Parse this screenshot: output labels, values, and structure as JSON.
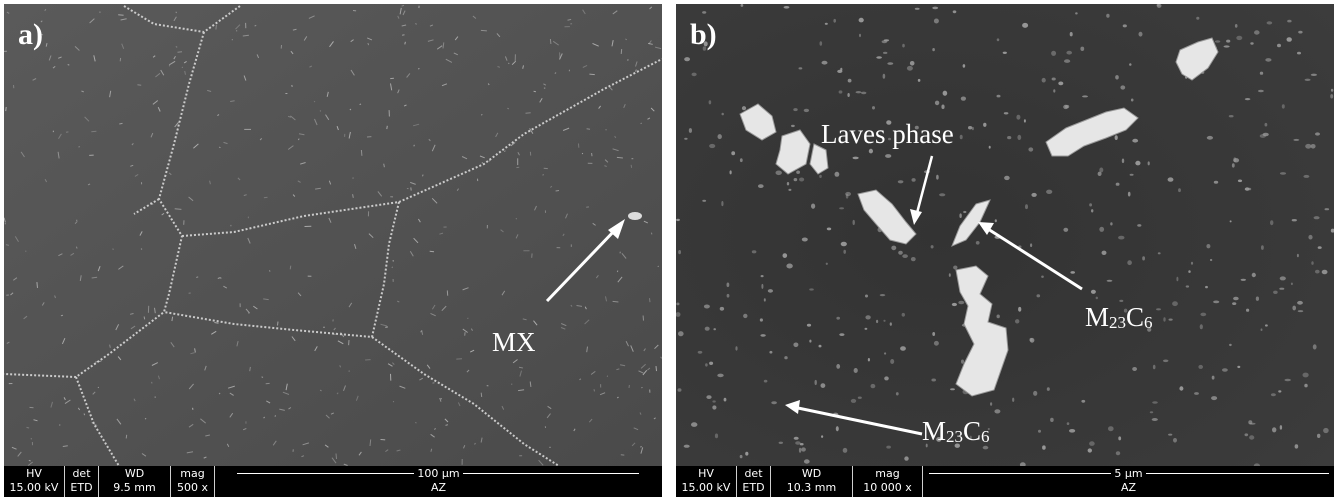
{
  "panel_a": {
    "letter": "a)",
    "label_mx": "MX",
    "databar": {
      "hv_header": "HV",
      "hv_value": "15.00 kV",
      "det_header": "det",
      "det_value": "ETD",
      "wd_header": "WD",
      "wd_value": "9.5 mm",
      "mag_header": "mag",
      "mag_value": "500 x",
      "scale_text": "100 µm",
      "operator": "AZ"
    }
  },
  "panel_b": {
    "letter": "b)",
    "label_laves": "Laves phase",
    "label_m23c6_1_main": "M",
    "label_m23c6_1_sub1": "23",
    "label_m23c6_1_c": "C",
    "label_m23c6_1_sub2": "6",
    "label_m23c6_2_main": "M",
    "label_m23c6_2_sub1": "23",
    "label_m23c6_2_c": "C",
    "label_m23c6_2_sub2": "6",
    "databar": {
      "hv_header": "HV",
      "hv_value": "15.00 kV",
      "det_header": "det",
      "det_value": "ETD",
      "wd_header": "WD",
      "wd_value": "10.3 mm",
      "mag_header": "mag",
      "mag_value": "10 000 x",
      "scale_text": "5 µm",
      "operator": "AZ"
    }
  }
}
